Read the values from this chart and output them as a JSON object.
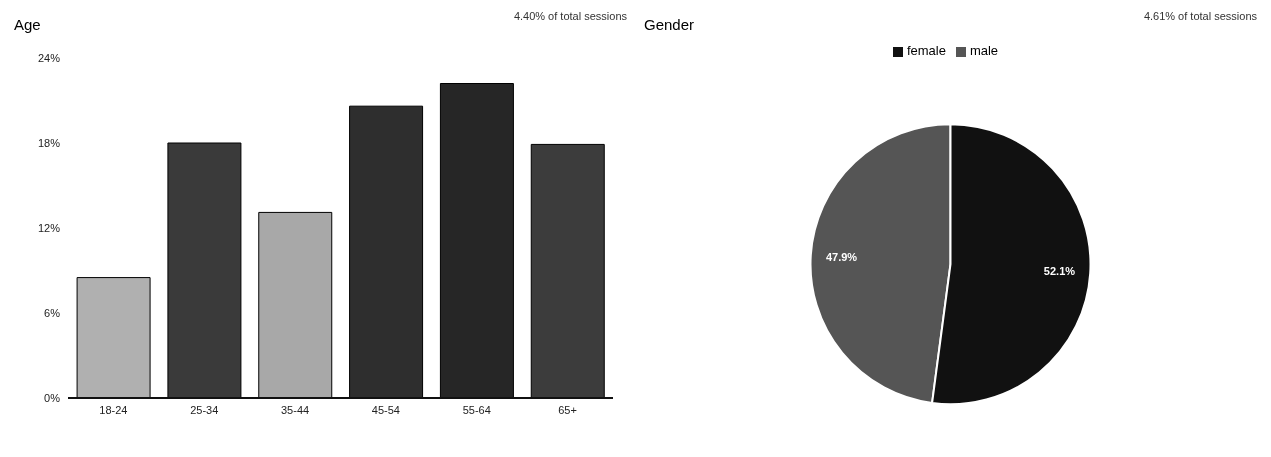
{
  "chart_data": [
    {
      "type": "bar",
      "title": "Age",
      "subtitle": "4.40% of total sessions",
      "categories": [
        "18-24",
        "25-34",
        "35-44",
        "45-54",
        "55-64",
        "65+"
      ],
      "values": [
        8.5,
        18.0,
        13.1,
        20.6,
        22.2,
        17.9
      ],
      "colors": [
        "#b0b0b0",
        "#3a3a3a",
        "#a8a8a8",
        "#2e2e2e",
        "#262626",
        "#3c3c3c"
      ],
      "ylim": [
        0,
        24
      ],
      "yticks": [
        {
          "value": 0,
          "label": "0%"
        },
        {
          "value": 6,
          "label": "6%"
        },
        {
          "value": 12,
          "label": "12%"
        },
        {
          "value": 18,
          "label": "18%"
        },
        {
          "value": 24,
          "label": "24%"
        }
      ],
      "grid": false
    },
    {
      "type": "pie",
      "title": "Gender",
      "subtitle": "4.61% of total sessions",
      "categories": [
        "male",
        "female"
      ],
      "values": [
        47.9,
        52.1
      ],
      "colors": [
        "#555555",
        "#111111"
      ],
      "value_labels": [
        "47.9%",
        "52.1%"
      ],
      "legend": "top"
    }
  ]
}
